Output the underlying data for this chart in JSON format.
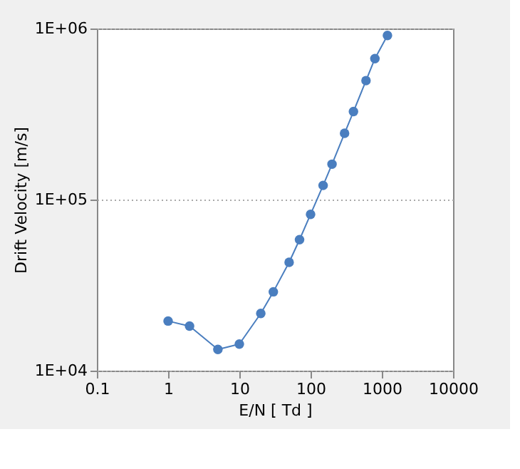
{
  "chart_data": {
    "type": "line",
    "xlabel": "E/N [ Td ]",
    "ylabel": "Drift Velocity [m/s]",
    "x": [
      1,
      2,
      5,
      10,
      20,
      30,
      50,
      70,
      100,
      150,
      200,
      300,
      400,
      600,
      800,
      1200
    ],
    "series": [
      {
        "color": "#4a7ebf",
        "values": [
          19500,
          18200,
          13300,
          14300,
          21600,
          28900,
          43000,
          58300,
          82000,
          121000,
          161000,
          244000,
          327000,
          496000,
          667000,
          910000
        ]
      }
    ],
    "log": "xy",
    "xlim": [
      0.1,
      10000
    ],
    "xticks": [
      0.1,
      1,
      10,
      100,
      1000,
      10000
    ],
    "ylim": [
      10000,
      1000000
    ],
    "yticks": [
      {
        "value": 10000,
        "label": "1E+04"
      },
      {
        "value": 100000,
        "label": "1E+05"
      },
      {
        "value": 1000000,
        "label": "1E+06"
      }
    ],
    "grid": "y",
    "marker": "circle",
    "line_style": "solid"
  }
}
